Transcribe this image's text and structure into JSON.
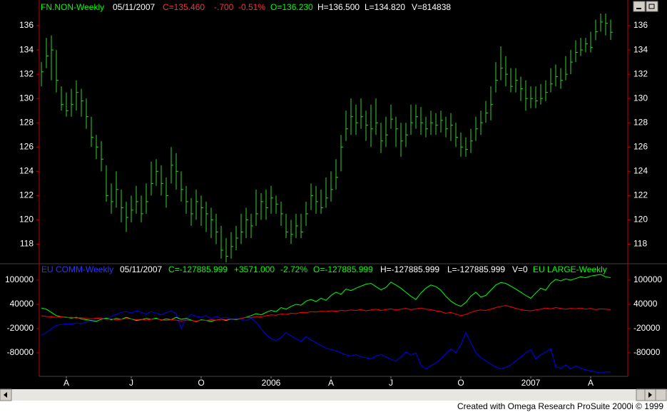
{
  "chart_data": [
    {
      "type": "ohlc",
      "header": {
        "symbol": "FN.NON-Weekly",
        "date": "05/11/2007",
        "close": "C=135.460",
        "change": "-.700",
        "percent": "-0.51%",
        "open": "O=136.230",
        "high": "H=136.500",
        "low": "L=134.820",
        "volume": "V=814838"
      },
      "categories": [
        null,
        null,
        null,
        null,
        null,
        "A",
        null,
        null,
        null,
        null,
        null,
        null,
        null,
        null,
        null,
        null,
        null,
        null,
        "J",
        null,
        null,
        null,
        null,
        null,
        null,
        null,
        null,
        null,
        null,
        null,
        null,
        null,
        "O",
        null,
        null,
        null,
        null,
        null,
        null,
        null,
        null,
        null,
        null,
        null,
        null,
        null,
        "2006",
        null,
        null,
        null,
        null,
        null,
        null,
        null,
        null,
        null,
        null,
        null,
        "A",
        null,
        null,
        null,
        null,
        null,
        null,
        null,
        null,
        null,
        null,
        null,
        "J",
        null,
        null,
        null,
        null,
        null,
        null,
        null,
        null,
        null,
        null,
        null,
        null,
        null,
        "O",
        null,
        null,
        null,
        null,
        null,
        null,
        null,
        null,
        null,
        null,
        null,
        null,
        null,
        "2007",
        null,
        null,
        null,
        null,
        null,
        null,
        null,
        null,
        null,
        null,
        null,
        "A",
        null,
        null,
        null,
        null
      ],
      "high": [
        133,
        135,
        135.2,
        134,
        131,
        130.5,
        130.8,
        131.5,
        130.8,
        130,
        128.5,
        127,
        126.5,
        124.5,
        123,
        124,
        122.5,
        121.5,
        122,
        122.8,
        122,
        123,
        124.8,
        125,
        124.5,
        123.5,
        126,
        125.5,
        124,
        122.8,
        121.8,
        122.5,
        122,
        121.5,
        121,
        120.5,
        119.5,
        118.5,
        119,
        119.5,
        120.5,
        121,
        120.5,
        122.5,
        122.2,
        122.5,
        122.8,
        122,
        121.5,
        120.5,
        120,
        120.5,
        120.5,
        121.5,
        123,
        122.8,
        122.5,
        123.5,
        124,
        125,
        127,
        129,
        130,
        129.5,
        130,
        129,
        129.5,
        130,
        128,
        128.5,
        129.5,
        128.5,
        128,
        128,
        129.5,
        129.5,
        129.3,
        128.5,
        129,
        128.8,
        129,
        128.5,
        128.8,
        128,
        127.2,
        126.8,
        127.5,
        128.5,
        129,
        129.8,
        131,
        133,
        134.3,
        133.5,
        132.5,
        132.5,
        131.8,
        131.5,
        131,
        131,
        131.2,
        131.5,
        132.5,
        132.8,
        132.5,
        133.5,
        134,
        134.8,
        135,
        135,
        135.5,
        136.5,
        137,
        137,
        136.5
      ],
      "low": [
        131,
        132.5,
        131.5,
        130.5,
        129,
        128.5,
        128.5,
        129,
        128.5,
        127.5,
        126,
        125,
        124,
        121.5,
        120.5,
        121,
        119.8,
        119,
        119.8,
        120.5,
        119.8,
        120.5,
        122,
        122.8,
        122,
        121,
        123,
        122.5,
        121.5,
        120.5,
        119.5,
        120,
        119.5,
        119,
        118.5,
        118,
        116.8,
        116.5,
        116.8,
        117.5,
        118,
        118.5,
        118.5,
        119.5,
        120,
        120,
        120.5,
        120.5,
        119.5,
        118.5,
        118,
        118.5,
        118.5,
        119.5,
        120.8,
        120.5,
        120.5,
        121,
        121.5,
        122.5,
        124,
        126.5,
        127,
        127,
        127.5,
        126.5,
        126,
        127,
        125.5,
        126,
        127.5,
        126,
        125.2,
        126,
        127,
        127.5,
        127,
        126.8,
        127,
        127,
        127.2,
        126.8,
        126.5,
        126,
        125.2,
        125.2,
        125.5,
        126.5,
        127,
        128,
        128.2,
        130.5,
        131.5,
        131,
        130.5,
        130.5,
        129.8,
        129,
        129.2,
        129.2,
        129.5,
        129.8,
        130.5,
        131,
        130.8,
        131.5,
        132,
        133,
        133.5,
        133.8,
        133.8,
        134.8,
        135.5,
        135.2,
        134.82
      ],
      "close": [
        132.2,
        133.5,
        134,
        131.5,
        129.5,
        129,
        129.5,
        130.5,
        129.8,
        128.5,
        126.8,
        126,
        125,
        122,
        121.5,
        122.5,
        121,
        120.2,
        120.8,
        121.5,
        120.5,
        121.5,
        123,
        124,
        123,
        122,
        124.5,
        124,
        122.5,
        121.5,
        120.5,
        121.5,
        121,
        120.5,
        120,
        119,
        117.5,
        117,
        117.8,
        118.5,
        119,
        120,
        119.5,
        120.5,
        121.5,
        121,
        121.8,
        121.3,
        120.5,
        119,
        118.8,
        119.5,
        119,
        120.5,
        122,
        121.5,
        121,
        121.8,
        122.5,
        123.5,
        126,
        127.5,
        128.5,
        128,
        128.5,
        127.8,
        127.5,
        128,
        126.5,
        127,
        128.3,
        127.5,
        126.5,
        127,
        128,
        128.5,
        128,
        127.5,
        128,
        127.8,
        128.2,
        127.5,
        127.8,
        126.8,
        126,
        125.8,
        126.5,
        127.5,
        128,
        128.8,
        129.5,
        131.5,
        132.5,
        132,
        131,
        131.5,
        130.8,
        130,
        130,
        129.8,
        130,
        130.5,
        131.2,
        131.8,
        131.5,
        132,
        133,
        133.8,
        134,
        134.5,
        134.2,
        135.5,
        136.3,
        136.2,
        135.46
      ],
      "color": "#2fd12f",
      "ylim": [
        116.5,
        138
      ],
      "yticks": [
        118,
        120,
        122,
        124,
        126,
        128,
        130,
        132,
        134,
        136
      ]
    },
    {
      "type": "line",
      "header": {
        "date": "05/11/2007",
        "close": "C=-127885.999",
        "change": "+3571.000",
        "percent": "-2.72%",
        "open": "O=-127885.999",
        "high": "H=-127885.999",
        "low": "L=-127885.999",
        "volume": "V=0"
      },
      "series": [
        {
          "name": "EU COMM-Weekly",
          "color": "#0000ff",
          "values": [
            -36000,
            -30000,
            -20000,
            -12000,
            -10000,
            -8000,
            -9000,
            -6000,
            -8000,
            -4000,
            -2000,
            5000,
            8000,
            2000,
            10000,
            15000,
            20000,
            22000,
            18000,
            24000,
            20000,
            16000,
            22000,
            18000,
            14000,
            20000,
            23000,
            17000,
            -20000,
            5000,
            15000,
            10000,
            8000,
            12000,
            5000,
            10000,
            6000,
            8000,
            2000,
            5000,
            3000,
            0,
            6000,
            -4000,
            -20000,
            -35000,
            -45000,
            -50000,
            -42000,
            -30000,
            -38000,
            -45000,
            -52000,
            -40000,
            -48000,
            -55000,
            -62000,
            -68000,
            -72000,
            -75000,
            -80000,
            -85000,
            -88000,
            -84000,
            -90000,
            -92000,
            -95000,
            -88000,
            -84000,
            -90000,
            -96000,
            -100000,
            -90000,
            -78000,
            -85000,
            -80000,
            -110000,
            -120000,
            -112000,
            -105000,
            -95000,
            -82000,
            -70000,
            -80000,
            -60000,
            -30000,
            -55000,
            -80000,
            -92000,
            -100000,
            -108000,
            -115000,
            -120000,
            -116000,
            -110000,
            -100000,
            -90000,
            -80000,
            -72000,
            -95000,
            -85000,
            -78000,
            -70000,
            -115000,
            -118000,
            -110000,
            -120000,
            -112000,
            -118000,
            -122000,
            -125000,
            -127000,
            -130000,
            -127000,
            -128000
          ]
        },
        {
          "name": "EU LARGE-Weekly",
          "color": "#00ff00",
          "values": [
            31000,
            28000,
            20000,
            12000,
            9000,
            8000,
            6000,
            8000,
            4000,
            2000,
            0,
            -2000,
            3000,
            6000,
            2000,
            5000,
            3000,
            8000,
            4000,
            0,
            2000,
            5000,
            3000,
            6000,
            1000,
            4000,
            2000,
            8000,
            3000,
            5000,
            1000,
            -3000,
            2000,
            0,
            -2000,
            1000,
            3000,
            0,
            4000,
            2000,
            5000,
            8000,
            12000,
            17000,
            14000,
            20000,
            25000,
            22000,
            32000,
            28000,
            35000,
            40000,
            38000,
            48000,
            52000,
            47000,
            55000,
            50000,
            62000,
            70000,
            65000,
            78000,
            74000,
            80000,
            85000,
            90000,
            92000,
            84000,
            76000,
            82000,
            95000,
            88000,
            80000,
            70000,
            60000,
            52000,
            68000,
            80000,
            88000,
            84000,
            75000,
            60000,
            48000,
            40000,
            35000,
            45000,
            60000,
            70000,
            58000,
            62000,
            75000,
            88000,
            94000,
            92000,
            85000,
            78000,
            70000,
            62000,
            55000,
            68000,
            80000,
            75000,
            92000,
            102000,
            98000,
            103000,
            100000,
            104000,
            108000,
            106000,
            110000,
            112000,
            114000,
            108000,
            106000
          ]
        },
        {
          "color": "#ff0000",
          "values": [
            12000,
            10000,
            9000,
            8000,
            9000,
            7000,
            8000,
            6000,
            7000,
            5000,
            4000,
            6000,
            5000,
            3000,
            4000,
            2000,
            3000,
            5000,
            4000,
            2000,
            3000,
            1000,
            3000,
            4000,
            2000,
            0,
            2000,
            1000,
            -1000,
            1000,
            0,
            -2000,
            1000,
            0,
            2000,
            1000,
            3000,
            2000,
            4000,
            3000,
            5000,
            8000,
            7000,
            10000,
            9000,
            12000,
            14000,
            13000,
            16000,
            15000,
            18000,
            17000,
            20000,
            19000,
            22000,
            21000,
            23000,
            22000,
            24000,
            23000,
            25000,
            24000,
            26000,
            25000,
            27000,
            24000,
            26000,
            28000,
            25000,
            27000,
            29000,
            26000,
            28000,
            30000,
            27000,
            29000,
            31000,
            28000,
            27000,
            24000,
            22000,
            18000,
            20000,
            16000,
            12000,
            15000,
            20000,
            24000,
            26000,
            25000,
            28000,
            32000,
            35000,
            37000,
            34000,
            30000,
            27000,
            25000,
            24000,
            26000,
            28000,
            31000,
            29000,
            32000,
            30000,
            28000,
            30000,
            29000,
            31000,
            28000,
            30000,
            27000,
            29000,
            28000,
            27000
          ]
        }
      ],
      "ylim": [
        -136500,
        137000
      ],
      "yticks": [
        -80000,
        -20000,
        40000,
        100000
      ]
    }
  ],
  "footer": "Created with Omega Research ProSuite 2000i © 1999"
}
